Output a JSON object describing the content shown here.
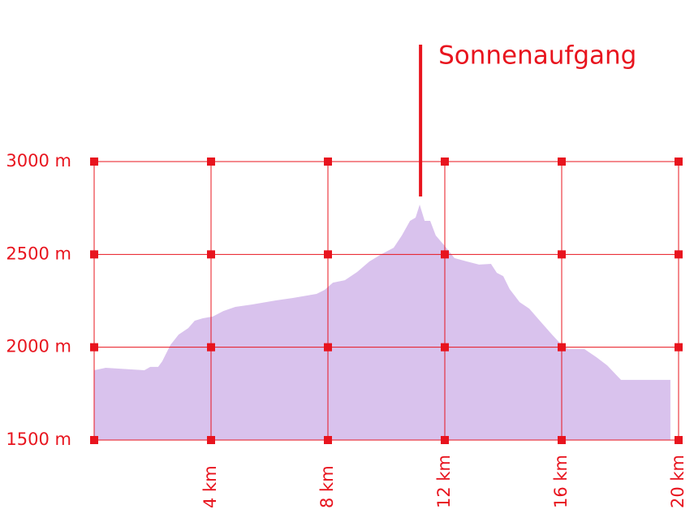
{
  "chart_data": {
    "type": "area",
    "color": "#d9c2ed",
    "axis_color": "#e8141e",
    "grid": true,
    "x": [
      0,
      0.39,
      1.72,
      1.92,
      2.19,
      2.33,
      2.61,
      2.89,
      3.22,
      3.44,
      3.72,
      4.06,
      4.42,
      4.83,
      5.39,
      6.22,
      6.78,
      7.61,
      7.89,
      8.17,
      8.58,
      9.0,
      9.42,
      9.83,
      10.25,
      10.53,
      10.81,
      11.0,
      11.14,
      11.31,
      11.5,
      11.69,
      12.0,
      12.33,
      12.75,
      13.17,
      13.58,
      13.78,
      14.0,
      14.22,
      14.56,
      14.89,
      15.25,
      15.67,
      16.0,
      16.22,
      16.78,
      17.19,
      17.56,
      18.03,
      18.72,
      19.72
    ],
    "values": [
      1876,
      1889,
      1876,
      1894,
      1894,
      1924,
      2012,
      2068,
      2103,
      2143,
      2156,
      2165,
      2195,
      2217,
      2230,
      2252,
      2265,
      2287,
      2309,
      2348,
      2361,
      2405,
      2462,
      2501,
      2536,
      2602,
      2681,
      2698,
      2768,
      2681,
      2681,
      2602,
      2545,
      2480,
      2462,
      2445,
      2449,
      2401,
      2383,
      2313,
      2243,
      2208,
      2143,
      2068,
      2012,
      1990,
      1990,
      1946,
      1902,
      1824,
      1824,
      1824
    ],
    "xlim": [
      0,
      20
    ],
    "ylim": [
      1500,
      3000
    ],
    "xticks": [
      {
        "value": 4,
        "label": "4 km"
      },
      {
        "value": 8,
        "label": "8 km"
      },
      {
        "value": 12,
        "label": "12 km"
      },
      {
        "value": 16,
        "label": "16 km"
      },
      {
        "value": 20,
        "label": "20 km"
      }
    ],
    "yticks": [
      {
        "value": 1500,
        "label": "1500 m"
      },
      {
        "value": 2000,
        "label": "2000 m"
      },
      {
        "value": 2500,
        "label": "2500 m"
      },
      {
        "value": 3000,
        "label": "3000 m"
      }
    ],
    "annotation": {
      "text": "Sonnenaufgang",
      "x": 11.17
    }
  }
}
